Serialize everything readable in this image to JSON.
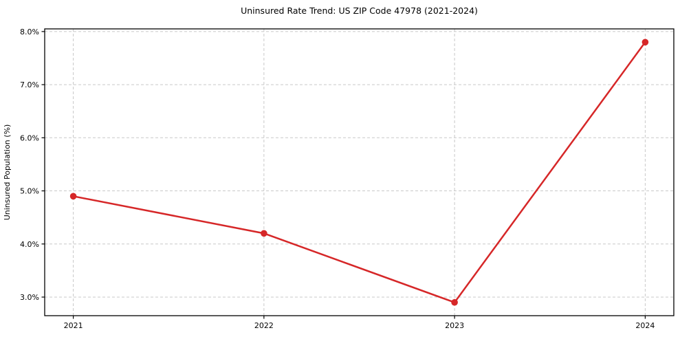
{
  "page": {
    "background": "#ffffff"
  },
  "chart_data": {
    "type": "line",
    "title": "Uninsured Rate Trend: US ZIP Code 47978 (2021-2024)",
    "xlabel": "",
    "ylabel": "Uninsured Population (%)",
    "x": [
      2021,
      2022,
      2023,
      2024
    ],
    "series": [
      {
        "name": "Uninsured rate",
        "values": [
          4.9,
          4.2,
          2.9,
          7.8
        ]
      }
    ],
    "xlim": [
      2020.85,
      2024.15
    ],
    "ylim": [
      2.65,
      8.05
    ],
    "xticks": [
      2021,
      2022,
      2023,
      2024
    ],
    "xtick_labels": [
      "2021",
      "2022",
      "2023",
      "2024"
    ],
    "yticks": [
      3,
      4,
      5,
      6,
      7,
      8
    ],
    "ytick_labels": [
      "3.0%",
      "4.0%",
      "5.0%",
      "6.0%",
      "7.0%",
      "8.0%"
    ],
    "grid": true,
    "grid_style": "dashed",
    "legend": false,
    "marker": "circle",
    "colors": {
      "line": "#d62728",
      "marker": "#d62728",
      "grid": "#c8c8c8",
      "spine": "#000000",
      "text": "#000000",
      "background": "#ffffff"
    }
  }
}
